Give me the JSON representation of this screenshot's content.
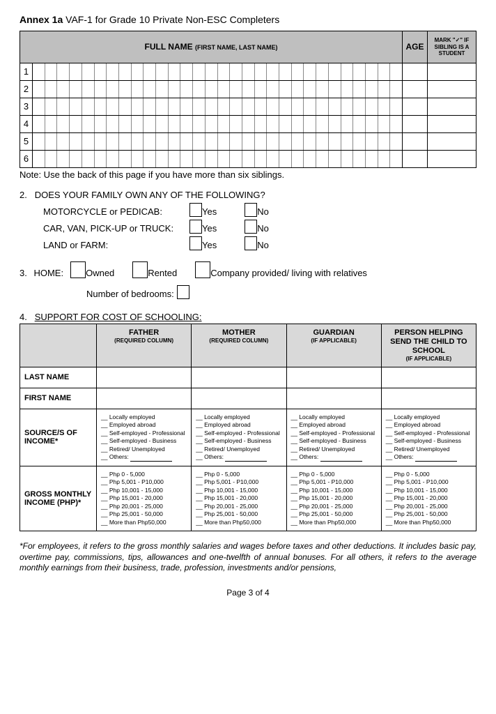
{
  "annex": {
    "bold": "Annex 1a",
    "rest": " VAF-1 for Grade 10 Private Non-ESC Completers"
  },
  "siblings_table": {
    "header_name_main": "FULL NAME ",
    "header_name_sub": "(FIRST NAME, LAST NAME)",
    "header_age": "AGE",
    "header_mark": "MARK \"✓\" IF SIBLING IS A STUDENT",
    "rows": [
      1,
      2,
      3,
      4,
      5,
      6
    ],
    "char_cols": 30,
    "note": "Note: Use the back of this page if you have more than six siblings."
  },
  "q2": {
    "num": "2.",
    "title": "DOES YOUR FAMILY OWN ANY OF THE FOLLOWING?",
    "items": [
      {
        "label": "MOTORCYCLE or PEDICAB:"
      },
      {
        "label": "CAR, VAN, PICK-UP or TRUCK:"
      },
      {
        "label": "LAND or FARM:"
      }
    ],
    "yes": "Yes",
    "no": "No"
  },
  "q3": {
    "num": "3.",
    "title": "HOME:",
    "options": [
      "Owned",
      "Rented",
      "Company provided/ living with relatives"
    ],
    "bedrooms_label": "Number of bedrooms:"
  },
  "q4": {
    "num": "4.",
    "title": "SUPPORT FOR COST OF SCHOOLING:",
    "columns": [
      {
        "main": "FATHER",
        "sub": "(REQUIRED COLUMN)"
      },
      {
        "main": "MOTHER",
        "sub": "(REQUIRED COLUMN)"
      },
      {
        "main": "GUARDIAN",
        "sub": "(IF APPLICABLE)"
      },
      {
        "main": "PERSON HELPING SEND THE CHILD TO SCHOOL",
        "sub": "(IF APPLICABLE)"
      }
    ],
    "rows": {
      "last_name": "LAST NAME",
      "first_name": "FIRST NAME",
      "source": "SOURCE/S OF INCOME*",
      "income": "GROSS MONTHLY INCOME (PHP)*"
    },
    "source_opts": [
      "Locally employed",
      "Employed abroad",
      "Self-employed - Professional",
      "Self-employed - Business",
      "Retired/ Unemployed"
    ],
    "source_others": "Others: ",
    "income_opts": [
      "Php 0 - 5,000",
      "Php 5,001 - P10,000",
      "Php 10,001 - 15,000",
      "Php 15,001 - 20,000",
      "Php 20,001 - 25,000",
      "Php 25,001 - 50,000",
      "More than Php50,000"
    ]
  },
  "footnote": "*For employees, it refers to the gross monthly salaries and wages before taxes and other deductions.  It includes basic pay, overtime pay, commissions, tips, allowances and one-twelfth of annual bonuses.  For all others, it refers to the average monthly earnings from their business, trade, profession, investments and/or pensions,",
  "page_num": "Page 3 of 4"
}
